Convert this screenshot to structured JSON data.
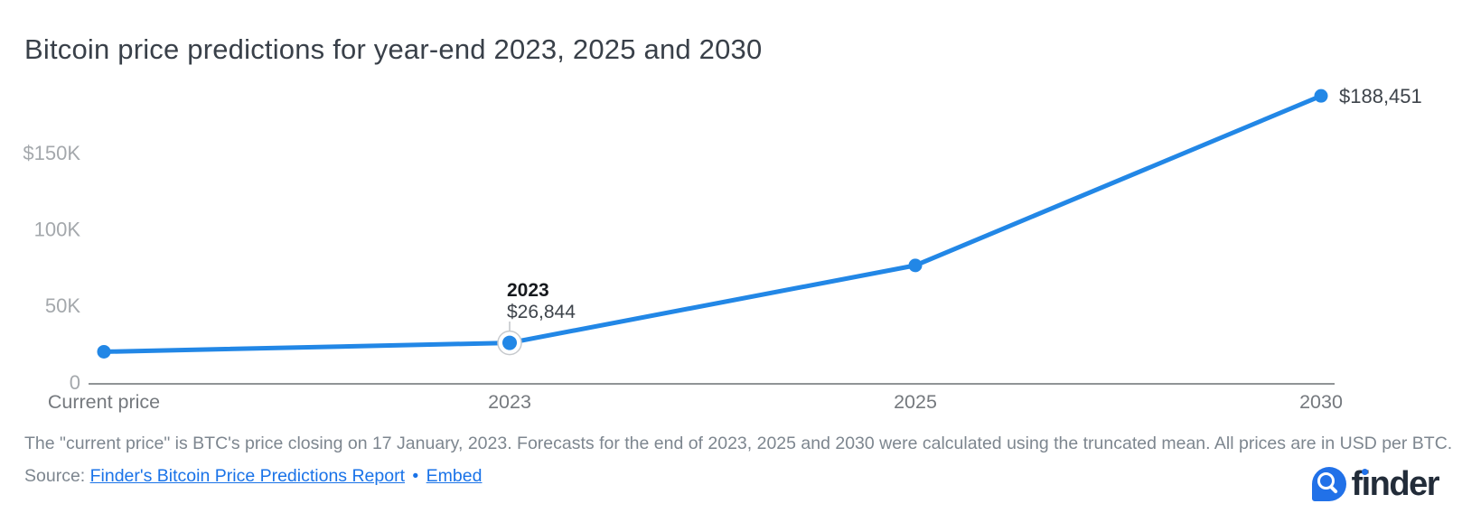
{
  "title": "Bitcoin price predictions for year-end 2023, 2025 and 2030",
  "chart_data": {
    "type": "line",
    "title": "Bitcoin price predictions for year-end 2023, 2025 and 2030",
    "categories": [
      "Current price",
      "2023",
      "2025",
      "2030"
    ],
    "series": [
      {
        "name": "Bitcoin price (USD per BTC)",
        "values": [
          21000,
          26844,
          77500,
          188451
        ]
      }
    ],
    "labeled_points": {
      "2023": 26844,
      "2030": 188451
    },
    "estimated_points": {
      "Current price": 21000,
      "2025": 77500
    },
    "yticks": [
      {
        "label": "0",
        "value": 0
      },
      {
        "label": "50K",
        "value": 50000
      },
      {
        "label": "100K",
        "value": 100000
      },
      {
        "label": "$150K",
        "value": 150000
      }
    ],
    "ylim": [
      0,
      195000
    ],
    "grid": false,
    "legend": "none",
    "tooltip": {
      "category": "2023",
      "value_label": "$26,844",
      "point_index": 1
    },
    "end_label": {
      "text": "$188,451",
      "point_index": 3
    }
  },
  "footnote": "The \"current price\" is BTC's price closing on 17 January, 2023. Forecasts for the end of 2023, 2025 and 2030 were calculated using the truncated mean. All prices are in USD per BTC.",
  "source": {
    "prefix": "Source:",
    "report_link": "Finder's Bitcoin Price Predictions Report",
    "separator": "•",
    "embed_link": "Embed"
  },
  "logo": {
    "wordmark": "finder"
  },
  "colors": {
    "line": "#2287e6",
    "marker": "#2287e6",
    "ring_stroke": "#c6c9cd",
    "connector": "#c0c3c7",
    "axis": "#808487",
    "y_label": "#a4a8ac",
    "x_label": "#75797e",
    "tooltip_title": "#16191d",
    "tooltip_value": "#3e444b",
    "end_label": "#3e444b",
    "link": "#1a73e8",
    "text_muted": "#7d868f",
    "title": "#394049",
    "logo_navy": "#222c39",
    "logo_blue": "#2171e8"
  }
}
